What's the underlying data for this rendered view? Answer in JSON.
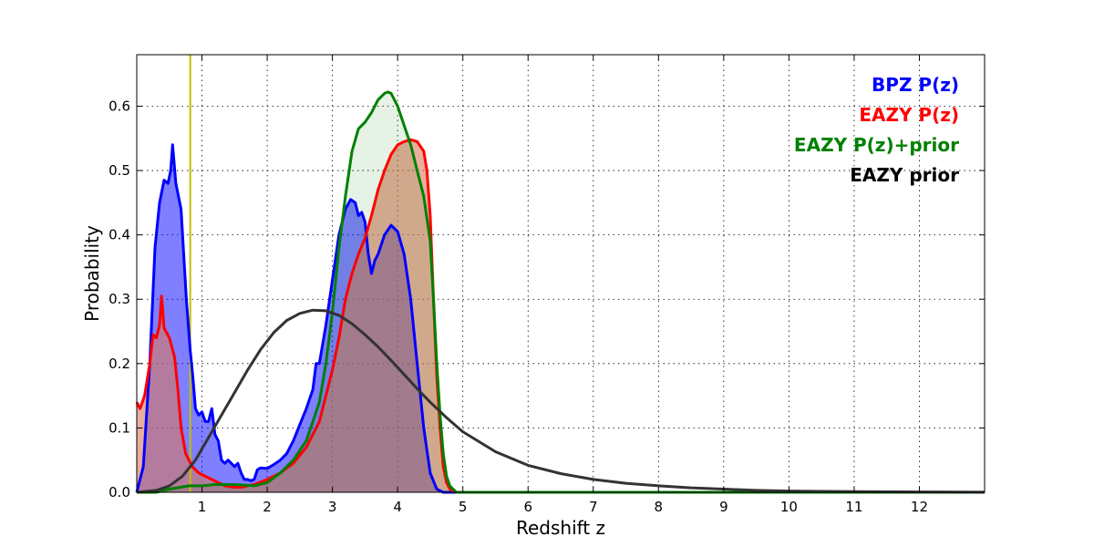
{
  "chart_data": {
    "type": "area",
    "title": "",
    "xlabel": "Redshift z",
    "ylabel": "Probability",
    "xlim": [
      0,
      13
    ],
    "ylim": [
      0,
      0.68
    ],
    "grid": true,
    "legend_placement": "top-right",
    "x_ticks": [
      1,
      2,
      3,
      4,
      5,
      6,
      7,
      8,
      9,
      10,
      11,
      12
    ],
    "y_ticks": [
      0.0,
      0.1,
      0.2,
      0.3,
      0.4,
      0.5,
      0.6
    ],
    "vline": {
      "x": 0.82,
      "color": "#bfbf00"
    },
    "series": [
      {
        "name": "BPZ P(z)",
        "color": "#0000ff",
        "fill_color": "#0000ff",
        "fill_opacity": 0.5,
        "points": [
          [
            0.0,
            0.0
          ],
          [
            0.1,
            0.04
          ],
          [
            0.2,
            0.2
          ],
          [
            0.28,
            0.38
          ],
          [
            0.35,
            0.45
          ],
          [
            0.42,
            0.485
          ],
          [
            0.48,
            0.48
          ],
          [
            0.52,
            0.5
          ],
          [
            0.55,
            0.54
          ],
          [
            0.6,
            0.48
          ],
          [
            0.68,
            0.44
          ],
          [
            0.76,
            0.3
          ],
          [
            0.82,
            0.22
          ],
          [
            0.86,
            0.18
          ],
          [
            0.9,
            0.13
          ],
          [
            0.95,
            0.12
          ],
          [
            1.0,
            0.125
          ],
          [
            1.05,
            0.11
          ],
          [
            1.1,
            0.11
          ],
          [
            1.15,
            0.13
          ],
          [
            1.2,
            0.09
          ],
          [
            1.25,
            0.08
          ],
          [
            1.3,
            0.05
          ],
          [
            1.35,
            0.045
          ],
          [
            1.4,
            0.05
          ],
          [
            1.45,
            0.045
          ],
          [
            1.5,
            0.04
          ],
          [
            1.55,
            0.045
          ],
          [
            1.6,
            0.03
          ],
          [
            1.65,
            0.02
          ],
          [
            1.7,
            0.02
          ],
          [
            1.75,
            0.018
          ],
          [
            1.8,
            0.02
          ],
          [
            1.85,
            0.035
          ],
          [
            1.9,
            0.038
          ],
          [
            2.0,
            0.037
          ],
          [
            2.1,
            0.043
          ],
          [
            2.2,
            0.05
          ],
          [
            2.3,
            0.06
          ],
          [
            2.4,
            0.08
          ],
          [
            2.5,
            0.105
          ],
          [
            2.6,
            0.13
          ],
          [
            2.7,
            0.16
          ],
          [
            2.75,
            0.2
          ],
          [
            2.8,
            0.2
          ],
          [
            2.9,
            0.26
          ],
          [
            3.0,
            0.33
          ],
          [
            3.1,
            0.4
          ],
          [
            3.2,
            0.44
          ],
          [
            3.28,
            0.455
          ],
          [
            3.35,
            0.45
          ],
          [
            3.4,
            0.43
          ],
          [
            3.45,
            0.435
          ],
          [
            3.5,
            0.42
          ],
          [
            3.55,
            0.37
          ],
          [
            3.6,
            0.34
          ],
          [
            3.65,
            0.36
          ],
          [
            3.7,
            0.37
          ],
          [
            3.8,
            0.4
          ],
          [
            3.9,
            0.415
          ],
          [
            4.0,
            0.405
          ],
          [
            4.1,
            0.37
          ],
          [
            4.2,
            0.3
          ],
          [
            4.3,
            0.2
          ],
          [
            4.4,
            0.1
          ],
          [
            4.5,
            0.03
          ],
          [
            4.6,
            0.005
          ],
          [
            4.7,
            0.0
          ],
          [
            13.0,
            0.0
          ]
        ]
      },
      {
        "name": "EAZY P(z)",
        "color": "#ff0000",
        "fill_color": "#d9785e",
        "fill_opacity": 0.6,
        "points": [
          [
            0.0,
            0.14
          ],
          [
            0.05,
            0.13
          ],
          [
            0.12,
            0.15
          ],
          [
            0.2,
            0.2
          ],
          [
            0.25,
            0.245
          ],
          [
            0.3,
            0.24
          ],
          [
            0.35,
            0.26
          ],
          [
            0.38,
            0.305
          ],
          [
            0.42,
            0.255
          ],
          [
            0.5,
            0.24
          ],
          [
            0.58,
            0.21
          ],
          [
            0.63,
            0.16
          ],
          [
            0.68,
            0.1
          ],
          [
            0.75,
            0.06
          ],
          [
            0.85,
            0.04
          ],
          [
            0.95,
            0.03
          ],
          [
            1.05,
            0.025
          ],
          [
            1.15,
            0.02
          ],
          [
            1.25,
            0.015
          ],
          [
            1.35,
            0.01
          ],
          [
            1.5,
            0.008
          ],
          [
            1.6,
            0.008
          ],
          [
            1.7,
            0.01
          ],
          [
            1.8,
            0.012
          ],
          [
            2.0,
            0.02
          ],
          [
            2.2,
            0.03
          ],
          [
            2.4,
            0.045
          ],
          [
            2.6,
            0.07
          ],
          [
            2.8,
            0.11
          ],
          [
            3.0,
            0.19
          ],
          [
            3.1,
            0.24
          ],
          [
            3.2,
            0.3
          ],
          [
            3.3,
            0.34
          ],
          [
            3.4,
            0.37
          ],
          [
            3.5,
            0.395
          ],
          [
            3.6,
            0.43
          ],
          [
            3.7,
            0.47
          ],
          [
            3.8,
            0.5
          ],
          [
            3.9,
            0.525
          ],
          [
            4.0,
            0.54
          ],
          [
            4.1,
            0.545
          ],
          [
            4.2,
            0.548
          ],
          [
            4.3,
            0.545
          ],
          [
            4.4,
            0.53
          ],
          [
            4.45,
            0.5
          ],
          [
            4.5,
            0.43
          ],
          [
            4.55,
            0.3
          ],
          [
            4.6,
            0.18
          ],
          [
            4.65,
            0.1
          ],
          [
            4.7,
            0.04
          ],
          [
            4.75,
            0.015
          ],
          [
            4.8,
            0.005
          ],
          [
            4.9,
            0.0
          ],
          [
            13.0,
            0.0
          ]
        ]
      },
      {
        "name": "EAZY P(z)+prior",
        "color": "#008000",
        "fill_color": "#008000",
        "fill_opacity": 0.1,
        "points": [
          [
            0.0,
            0.0
          ],
          [
            0.3,
            0.0
          ],
          [
            0.5,
            0.005
          ],
          [
            0.8,
            0.01
          ],
          [
            1.0,
            0.01
          ],
          [
            1.2,
            0.012
          ],
          [
            1.5,
            0.012
          ],
          [
            1.8,
            0.01
          ],
          [
            2.0,
            0.015
          ],
          [
            2.2,
            0.03
          ],
          [
            2.4,
            0.05
          ],
          [
            2.6,
            0.08
          ],
          [
            2.8,
            0.14
          ],
          [
            2.9,
            0.2
          ],
          [
            3.0,
            0.28
          ],
          [
            3.1,
            0.38
          ],
          [
            3.2,
            0.46
          ],
          [
            3.3,
            0.53
          ],
          [
            3.4,
            0.565
          ],
          [
            3.5,
            0.575
          ],
          [
            3.6,
            0.59
          ],
          [
            3.7,
            0.61
          ],
          [
            3.8,
            0.62
          ],
          [
            3.85,
            0.622
          ],
          [
            3.9,
            0.62
          ],
          [
            4.0,
            0.6
          ],
          [
            4.1,
            0.57
          ],
          [
            4.2,
            0.54
          ],
          [
            4.3,
            0.5
          ],
          [
            4.4,
            0.46
          ],
          [
            4.5,
            0.39
          ],
          [
            4.55,
            0.3
          ],
          [
            4.6,
            0.2
          ],
          [
            4.65,
            0.12
          ],
          [
            4.7,
            0.06
          ],
          [
            4.75,
            0.025
          ],
          [
            4.8,
            0.01
          ],
          [
            4.9,
            0.0
          ],
          [
            13.0,
            0.0
          ]
        ]
      },
      {
        "name": "EAZY prior",
        "color": "#333333",
        "fill_color": "none",
        "fill_opacity": 0,
        "points": [
          [
            0.0,
            0.0
          ],
          [
            0.3,
            0.003
          ],
          [
            0.5,
            0.01
          ],
          [
            0.7,
            0.025
          ],
          [
            0.9,
            0.05
          ],
          [
            1.1,
            0.085
          ],
          [
            1.3,
            0.12
          ],
          [
            1.5,
            0.155
          ],
          [
            1.7,
            0.19
          ],
          [
            1.9,
            0.222
          ],
          [
            2.1,
            0.248
          ],
          [
            2.3,
            0.267
          ],
          [
            2.5,
            0.278
          ],
          [
            2.7,
            0.283
          ],
          [
            2.9,
            0.282
          ],
          [
            3.1,
            0.275
          ],
          [
            3.3,
            0.262
          ],
          [
            3.5,
            0.245
          ],
          [
            3.7,
            0.226
          ],
          [
            3.9,
            0.205
          ],
          [
            4.1,
            0.183
          ],
          [
            4.3,
            0.161
          ],
          [
            4.5,
            0.14
          ],
          [
            4.75,
            0.116
          ],
          [
            5.0,
            0.094
          ],
          [
            5.5,
            0.063
          ],
          [
            6.0,
            0.042
          ],
          [
            6.5,
            0.029
          ],
          [
            7.0,
            0.02
          ],
          [
            7.5,
            0.014
          ],
          [
            8.0,
            0.01
          ],
          [
            8.5,
            0.007
          ],
          [
            9.0,
            0.005
          ],
          [
            9.5,
            0.003
          ],
          [
            10.0,
            0.002
          ],
          [
            11.0,
            0.001
          ],
          [
            12.0,
            0.0005
          ],
          [
            13.0,
            0.0002
          ]
        ]
      }
    ]
  }
}
